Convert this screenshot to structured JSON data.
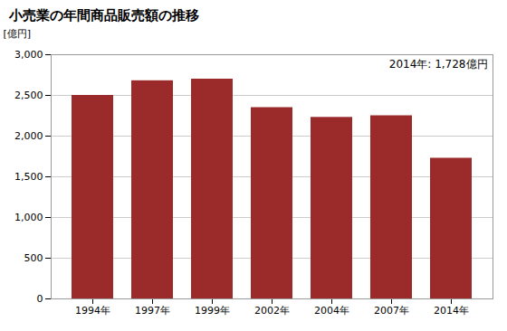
{
  "chart_data": {
    "type": "bar",
    "title": "小売業の年間商品販売額の推移",
    "ylabel": "[億円]",
    "annotation": "2014年: 1,728億円",
    "categories": [
      "1994年",
      "1997年",
      "1999年",
      "2002年",
      "2004年",
      "2007年",
      "2014年"
    ],
    "values": [
      2500,
      2680,
      2700,
      2350,
      2230,
      2250,
      1728
    ],
    "color": "#9b2a2a",
    "ylim": [
      0,
      3000
    ],
    "yticks": [
      0,
      500,
      {
        "value": 1000,
        "label": "1,000"
      },
      {
        "value": 1500,
        "label": "1,500"
      },
      {
        "value": 2000,
        "label": "2,000"
      },
      {
        "value": 2500,
        "label": "2,500"
      },
      {
        "value": 3000,
        "label": "3,000"
      }
    ],
    "grid": true
  }
}
